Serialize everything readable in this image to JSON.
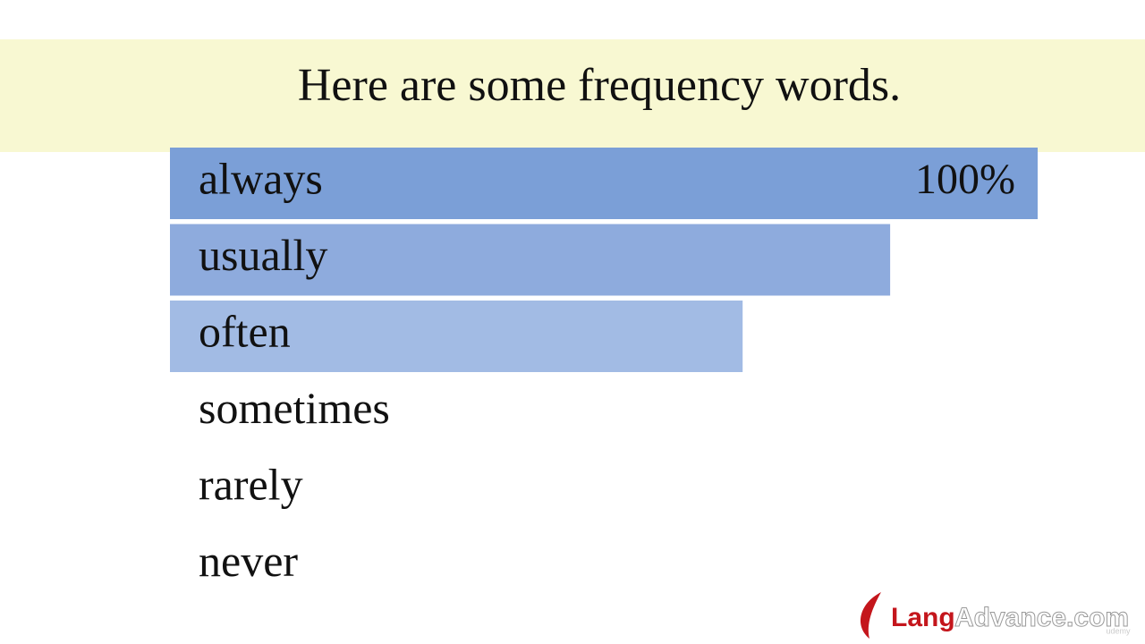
{
  "chart_data": {
    "type": "bar",
    "orientation": "horizontal",
    "title": "Here are some frequency words.",
    "categories": [
      "always",
      "usually",
      "often",
      "sometimes",
      "rarely",
      "never"
    ],
    "values": [
      100,
      83,
      66,
      null,
      null,
      null
    ],
    "value_labels": [
      "100%",
      null,
      null,
      null,
      null,
      null
    ],
    "colors": [
      "#7b9fd7",
      "#8eabdd",
      "#a2bbe4",
      null,
      null,
      null
    ],
    "xlim": [
      0,
      100
    ]
  },
  "logo": {
    "brand": "Lang",
    "suffix": "Advance.com",
    "watermark": "udemy"
  }
}
